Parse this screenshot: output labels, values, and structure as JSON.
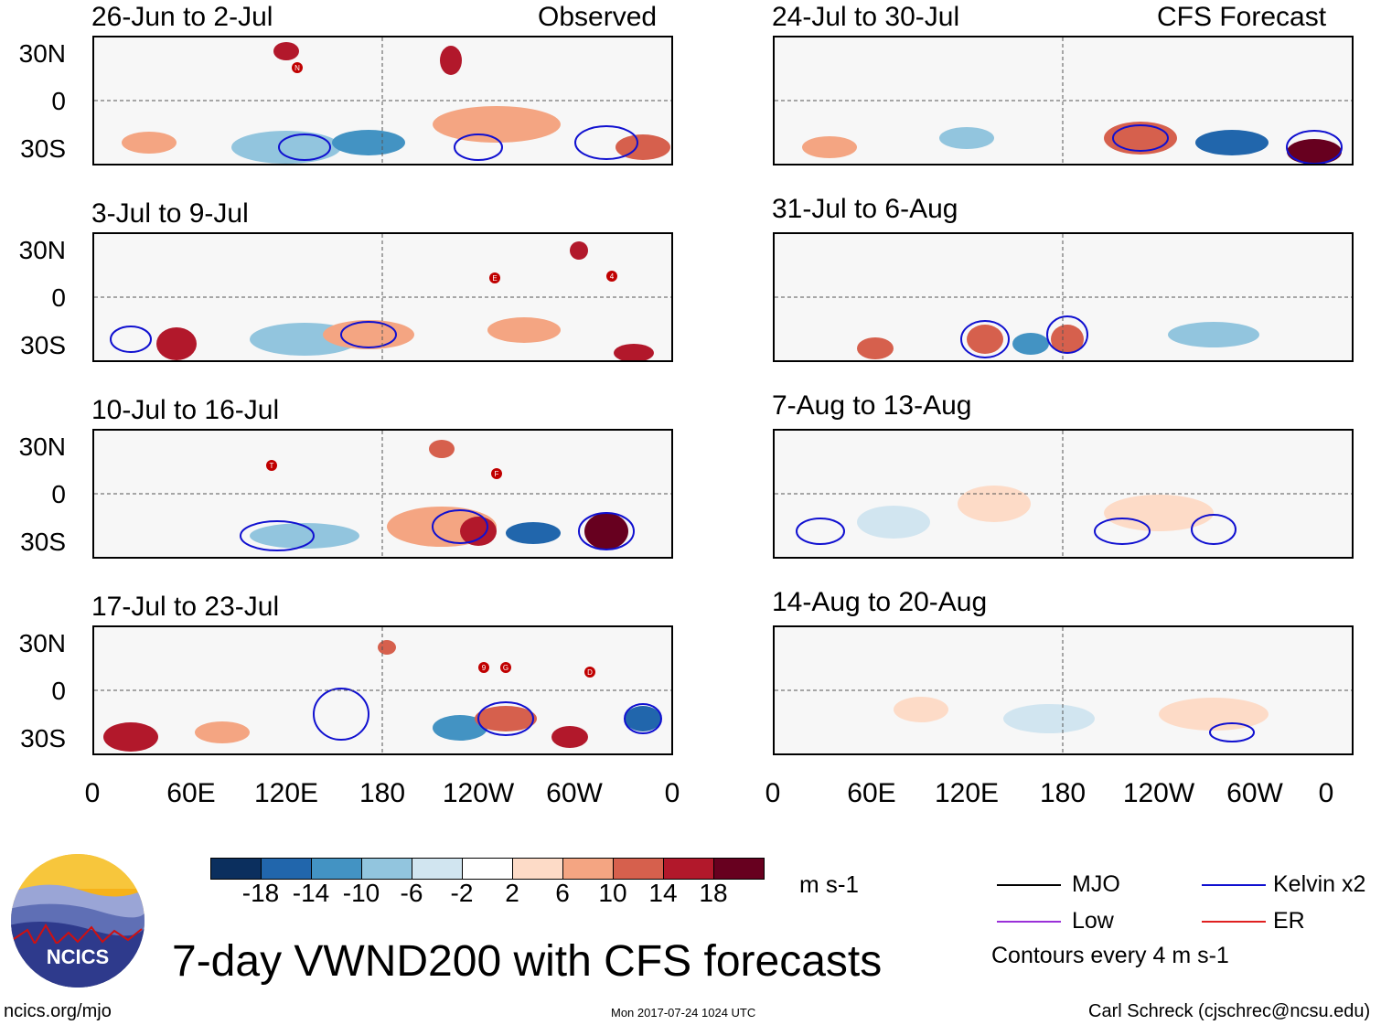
{
  "observed_label": "Observed",
  "forecast_label": "CFS Forecast",
  "panels": [
    {
      "title": "26-Jun to 2-Jul"
    },
    {
      "title": "3-Jul to 9-Jul"
    },
    {
      "title": "10-Jul to 16-Jul"
    },
    {
      "title": "17-Jul to 23-Jul"
    },
    {
      "title": "24-Jul to 30-Jul"
    },
    {
      "title": "31-Jul to 6-Aug"
    },
    {
      "title": "7-Aug to 13-Aug"
    },
    {
      "title": "14-Aug to 20-Aug"
    }
  ],
  "lat_labels": [
    "30N",
    "0",
    "30S"
  ],
  "lon_labels": [
    "0",
    "60E",
    "120E",
    "180",
    "120W",
    "60W",
    "0"
  ],
  "storm_markers": [
    "N",
    "E",
    "4",
    "T",
    "F",
    "9",
    "G",
    "D"
  ],
  "colorbar": {
    "colors": [
      "#0b2f5e",
      "#2166ac",
      "#4393c3",
      "#92c5de",
      "#d1e5f0",
      "#ffffff",
      "#fddbc7",
      "#f4a582",
      "#d6604d",
      "#b2182b",
      "#67001f"
    ],
    "ticks": [
      "-18",
      "-14",
      "-10",
      "-6",
      "-2",
      "2",
      "6",
      "10",
      "14",
      "18"
    ],
    "units": "m s-1"
  },
  "legend": {
    "mjo": "MJO",
    "kelvin": "Kelvin x2",
    "low": "Low",
    "er": "ER",
    "contours_note": "Contours every 4 m s-1",
    "colors": {
      "mjo": "#000000",
      "kelvin": "#1010d0",
      "low": "#9a30d8",
      "er": "#e02020"
    }
  },
  "main_title": "7-day VWND200 with CFS forecasts",
  "logo_text": "NCICS",
  "footer": {
    "url": "ncics.org/mjo",
    "timestamp": "Mon 2017-07-24 1024 UTC",
    "author": "Carl Schreck (cjschrec@ncsu.edu)"
  }
}
